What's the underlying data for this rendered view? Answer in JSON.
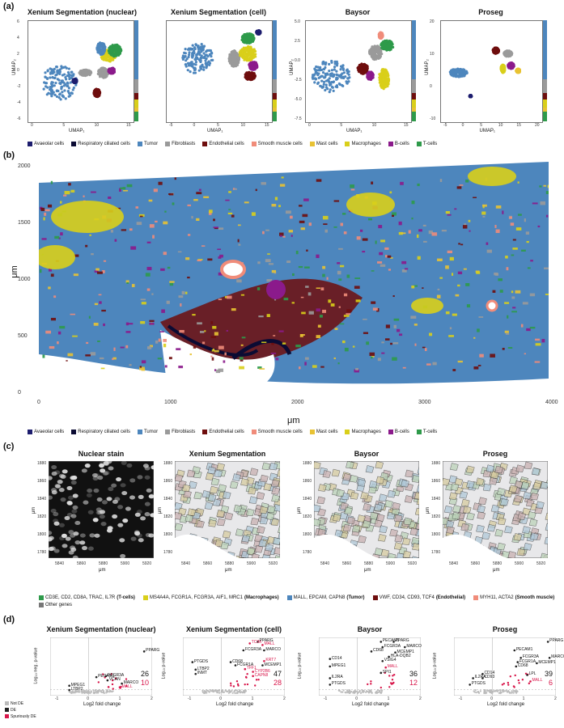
{
  "panels": {
    "a": "(a)",
    "b": "(b)",
    "c": "(c)",
    "d": "(d)"
  },
  "colors": {
    "avcells": "#1d1d6e",
    "resp": "#0b0b33",
    "tumor": "#4d86bd",
    "fibro": "#9a9a9a",
    "endo": "#6e0d0d",
    "smooth": "#f08c7a",
    "mast": "#e8c233",
    "macro": "#d9cf1a",
    "bcells": "#8b1a8b",
    "tcells": "#2e9a4a",
    "notde": "#bbbbbb",
    "de": "#222222",
    "spur": "#d8164a"
  },
  "cell_types": [
    "Avaeolar cells",
    "Respiratory ciliated cells",
    "Tumor",
    "Fibroblasts",
    "Endothelial cells",
    "Smooth muscle cells",
    "Mast cells",
    "Macrophages",
    "B-cells",
    "T-cells"
  ],
  "umap": [
    {
      "title": "Xenium Segmentation (nuclear)",
      "xlabel": "UMAP₁",
      "ylabel": "UMAP₂",
      "xticks": [
        "0",
        "5",
        "10",
        "15"
      ],
      "yticks": [
        "6",
        "4",
        "2",
        "0",
        "-2",
        "-4",
        "-6"
      ]
    },
    {
      "title": "Xenium Segmentation (cell)",
      "xlabel": "UMAP₁",
      "ylabel": "",
      "xticks": [
        "-5",
        "0",
        "5",
        "10",
        "15"
      ],
      "yticks": []
    },
    {
      "title": "Baysor",
      "xlabel": "UMAP₁",
      "ylabel": "UMAP₂",
      "xticks": [
        "0",
        "5",
        "10",
        "15"
      ],
      "yticks": [
        "5.0",
        "2.5",
        "0.0",
        "-2.5",
        "-5.0",
        "-7.5"
      ]
    },
    {
      "title": "Proseg",
      "xlabel": "UMAP₁",
      "ylabel": "UMAP₂",
      "xticks": [
        "-5",
        "0",
        "5",
        "10",
        "15",
        "20"
      ],
      "yticks": [
        "20",
        "10",
        "0",
        "-10"
      ]
    }
  ],
  "tissue": {
    "xlabel": "μm",
    "ylabel": "μm",
    "xticks": [
      "0",
      "1000",
      "2000",
      "3000",
      "4000"
    ],
    "yticks": [
      "2000",
      "1500",
      "1000",
      "500",
      "0"
    ]
  },
  "zoom": {
    "titles": [
      "Nuclear stain",
      "Xenium Segmentation",
      "Baysor",
      "Proseg"
    ],
    "xticks": [
      "5840",
      "5860",
      "5880",
      "5900",
      "5920"
    ],
    "yticks": [
      "1880",
      "1860",
      "1840",
      "1820",
      "1800",
      "1780"
    ],
    "xlabel": "μm",
    "ylabel": "μm",
    "legend": [
      {
        "color": "#2e9a4a",
        "text": "CD3E, CD2, CD8A, TRAC, IL7R ",
        "bold": "(T-cells)"
      },
      {
        "color": "#d9cf1a",
        "text": "MS4A4A, FCGR1A, FCGR3A, AIF1, MRC1 ",
        "bold": "(Macrophages)"
      },
      {
        "color": "#4d86bd",
        "text": "MALL, EPCAM, CAPN8 ",
        "bold": "(Tumor)"
      },
      {
        "color": "#6e0d0d",
        "text": "VWF, CD34, CD93, TCF4 ",
        "bold": "(Endothelial)"
      },
      {
        "color": "#f08c7a",
        "text": "MYH11, ACTA2 ",
        "bold": "(Smooth muscle)"
      },
      {
        "color": "#777777",
        "text": "Other genes",
        "bold": ""
      }
    ]
  },
  "volcano": [
    {
      "title": "Xenium Segmentation (nuclear)",
      "ylabel": "Log₁₀ neg. p-value",
      "xlabel": "Log2 fold change",
      "xticks": [
        "-1",
        "0",
        "1",
        "2"
      ],
      "n_de": "26",
      "n_spur": "10",
      "genes": [
        {
          "t": "PPARG",
          "x": 1.75,
          "y": 0.78,
          "r": 0
        },
        {
          "t": "PECAM1",
          "x": 0.25,
          "y": 0.3,
          "r": 0
        },
        {
          "t": "FCGR3A",
          "x": 0.55,
          "y": 0.32,
          "r": 0
        },
        {
          "t": "VCAN",
          "x": 0.6,
          "y": 0.24,
          "r": 0
        },
        {
          "t": "MARCO",
          "x": 1.05,
          "y": 0.18,
          "r": 0
        },
        {
          "t": "MALL",
          "x": 1.0,
          "y": 0.1,
          "r": 1
        },
        {
          "t": "MPEG1",
          "x": -0.6,
          "y": 0.14,
          "r": 0
        },
        {
          "t": "LTBP2",
          "x": -0.6,
          "y": 0.06,
          "r": 0
        }
      ]
    },
    {
      "title": "Xenium Segmentation (cell)",
      "ylabel": "Log₁₀ p-value",
      "xlabel": "Log2 fold change",
      "xticks": [
        "-1",
        "0",
        "1",
        "2"
      ],
      "n_de": "47",
      "n_spur": "28",
      "genes": [
        {
          "t": "TCIM",
          "x": 0.9,
          "y": 0.93,
          "r": 1
        },
        {
          "t": "PPARG",
          "x": 1.15,
          "y": 0.96,
          "r": 0
        },
        {
          "t": "MALL",
          "x": 1.3,
          "y": 0.9,
          "r": 1
        },
        {
          "t": "FCGR3A",
          "x": 0.7,
          "y": 0.8,
          "r": 0
        },
        {
          "t": "MARCO",
          "x": 1.35,
          "y": 0.8,
          "r": 0
        },
        {
          "t": "KRT7",
          "x": 1.35,
          "y": 0.6,
          "r": 1
        },
        {
          "t": "CD68",
          "x": 0.3,
          "y": 0.58,
          "r": 0
        },
        {
          "t": "FCGR1A",
          "x": 0.45,
          "y": 0.52,
          "r": 0
        },
        {
          "t": "MCEMP1",
          "x": 1.3,
          "y": 0.52,
          "r": 0
        },
        {
          "t": "TFF1",
          "x": 0.75,
          "y": 0.45,
          "r": 1
        },
        {
          "t": "CYP2B6",
          "x": 1.0,
          "y": 0.4,
          "r": 1
        },
        {
          "t": "CAPN8",
          "x": 1.0,
          "y": 0.32,
          "r": 1
        },
        {
          "t": "PTGDS",
          "x": -0.9,
          "y": 0.58,
          "r": 0
        },
        {
          "t": "LTBP2",
          "x": -0.8,
          "y": 0.44,
          "r": 0
        },
        {
          "t": "INMT",
          "x": -0.8,
          "y": 0.36,
          "r": 0
        }
      ]
    },
    {
      "title": "Baysor",
      "ylabel": "Log₁₀ p-value",
      "xlabel": "Log2 fold change",
      "xticks": [
        "-1",
        "0",
        "1",
        "2"
      ],
      "n_de": "36",
      "n_spur": "12",
      "genes": [
        {
          "t": "PECAM1",
          "x": 0.75,
          "y": 0.96,
          "r": 0
        },
        {
          "t": "PPARG",
          "x": 1.15,
          "y": 0.96,
          "r": 0
        },
        {
          "t": "FCGR3A",
          "x": 0.8,
          "y": 0.86,
          "r": 0
        },
        {
          "t": "MARCO",
          "x": 1.5,
          "y": 0.86,
          "r": 0
        },
        {
          "t": "CD68",
          "x": 0.45,
          "y": 0.78,
          "r": 0
        },
        {
          "t": "MCEMP1",
          "x": 1.2,
          "y": 0.76,
          "r": 0
        },
        {
          "t": "HLA-DQB2",
          "x": 1.0,
          "y": 0.68,
          "r": 0
        },
        {
          "t": "VSIG4",
          "x": 0.8,
          "y": 0.6,
          "r": 0
        },
        {
          "t": "MALL",
          "x": 0.9,
          "y": 0.48,
          "r": 1
        },
        {
          "t": "SPI1",
          "x": 0.75,
          "y": 0.38,
          "r": 0
        },
        {
          "t": "CD14",
          "x": -0.85,
          "y": 0.64,
          "r": 0
        },
        {
          "t": "MPEG1",
          "x": -0.85,
          "y": 0.5,
          "r": 0
        },
        {
          "t": "IL2RA",
          "x": -0.85,
          "y": 0.28,
          "r": 0
        },
        {
          "t": "PTGDS",
          "x": -0.85,
          "y": 0.16,
          "r": 0
        }
      ]
    },
    {
      "title": "Proseg",
      "ylabel": "Log₁₀ p-value",
      "xlabel": "Log2 fold change",
      "xticks": [
        "-1",
        "0",
        "1",
        "2"
      ],
      "n_de": "39",
      "n_spur": "6",
      "genes": [
        {
          "t": "PPARG",
          "x": 1.75,
          "y": 0.96,
          "r": 0
        },
        {
          "t": "PECAM1",
          "x": 0.7,
          "y": 0.8,
          "r": 0
        },
        {
          "t": "MARCO",
          "x": 1.8,
          "y": 0.66,
          "r": 0
        },
        {
          "t": "FCGR3A",
          "x": 0.9,
          "y": 0.66,
          "r": 0
        },
        {
          "t": "FCGR1A",
          "x": 0.8,
          "y": 0.58,
          "r": 0
        },
        {
          "t": "MCEMP1",
          "x": 1.4,
          "y": 0.56,
          "r": 0
        },
        {
          "t": "CD68",
          "x": 0.75,
          "y": 0.5,
          "r": 0
        },
        {
          "t": "LPL",
          "x": 1.1,
          "y": 0.34,
          "r": 0
        },
        {
          "t": "MALL",
          "x": 1.2,
          "y": 0.22,
          "r": 1
        },
        {
          "t": "CD14",
          "x": -0.3,
          "y": 0.36,
          "r": 0
        },
        {
          "t": "IL2RA",
          "x": -0.6,
          "y": 0.28,
          "r": 0
        },
        {
          "t": "CD93",
          "x": -0.3,
          "y": 0.28,
          "r": 0
        },
        {
          "t": "PTGDS",
          "x": -0.7,
          "y": 0.16,
          "r": 0
        }
      ]
    }
  ],
  "volcano_legend": [
    "Not DE",
    "DE",
    "Spuriously DE"
  ]
}
